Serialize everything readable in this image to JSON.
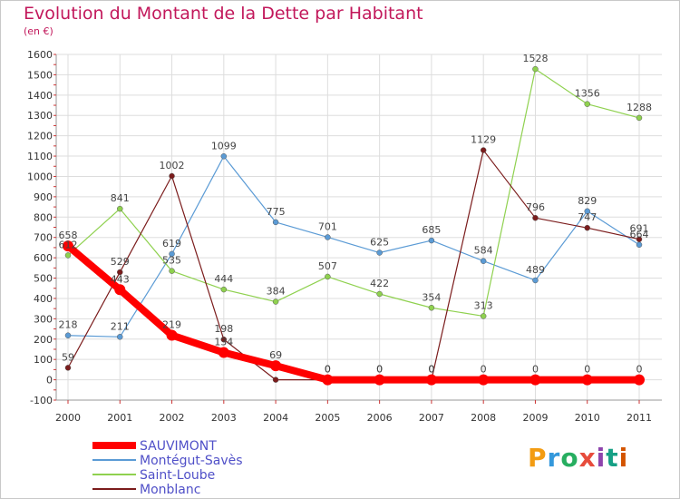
{
  "header": {
    "title": "Evolution du Montant de la Dette par Habitant",
    "subtitle": "(en €)"
  },
  "logo": {
    "letters": [
      "P",
      "r",
      "o",
      "x",
      "i",
      "t",
      "i"
    ],
    "colors": [
      "#f39c12",
      "#3498db",
      "#27ae60",
      "#e74c3c",
      "#8e44ad",
      "#16a085",
      "#d35400"
    ]
  },
  "chart_data": {
    "type": "line",
    "title": "Evolution du Montant de la Dette par Habitant",
    "subtitle": "(en €)",
    "x": [
      "2000",
      "2001",
      "2002",
      "2003",
      "2004",
      "2005",
      "2006",
      "2007",
      "2008",
      "2009",
      "2010",
      "2011"
    ],
    "ylim": [
      -100,
      1600
    ],
    "yticks": [
      -100,
      0,
      100,
      200,
      300,
      400,
      500,
      600,
      700,
      800,
      900,
      1000,
      1100,
      1200,
      1300,
      1400,
      1500,
      1600
    ],
    "grid": true,
    "legend_position": "bottom-left",
    "series": [
      {
        "name": "SAUVIMONT",
        "color": "#ff0000",
        "emphasis": true,
        "values": [
          658,
          443,
          219,
          134,
          69,
          0,
          0,
          0,
          0,
          0,
          0,
          0
        ],
        "labels": [
          "658",
          "443",
          "219",
          "134",
          "69",
          "0",
          "0",
          "0",
          "0",
          "0",
          "0",
          "0"
        ]
      },
      {
        "name": "Montégut-Savès",
        "color": "#5b9bd5",
        "emphasis": false,
        "values": [
          218,
          211,
          619,
          1099,
          775,
          701,
          625,
          685,
          584,
          489,
          829,
          664
        ],
        "labels": [
          "218",
          "211",
          "619",
          "1099",
          "775",
          "701",
          "625",
          "685",
          "584",
          "489",
          "829",
          "664"
        ]
      },
      {
        "name": "Saint-Loube",
        "color": "#8fd14f",
        "emphasis": false,
        "values": [
          612,
          841,
          535,
          444,
          384,
          507,
          422,
          354,
          313,
          1528,
          1356,
          1288
        ],
        "labels": [
          "612",
          "841",
          "535",
          "444",
          "384",
          "507",
          "422",
          "354",
          "313",
          "1528",
          "1356",
          "1288"
        ]
      },
      {
        "name": "Monblanc",
        "color": "#7b1c1c",
        "emphasis": false,
        "values": [
          59,
          529,
          1002,
          198,
          0,
          0,
          0,
          0,
          1129,
          796,
          747,
          691
        ],
        "labels": [
          "59",
          "529",
          "1002",
          "198",
          "",
          "0",
          "0",
          "0",
          "1129",
          "796",
          "747",
          "691"
        ]
      }
    ]
  }
}
